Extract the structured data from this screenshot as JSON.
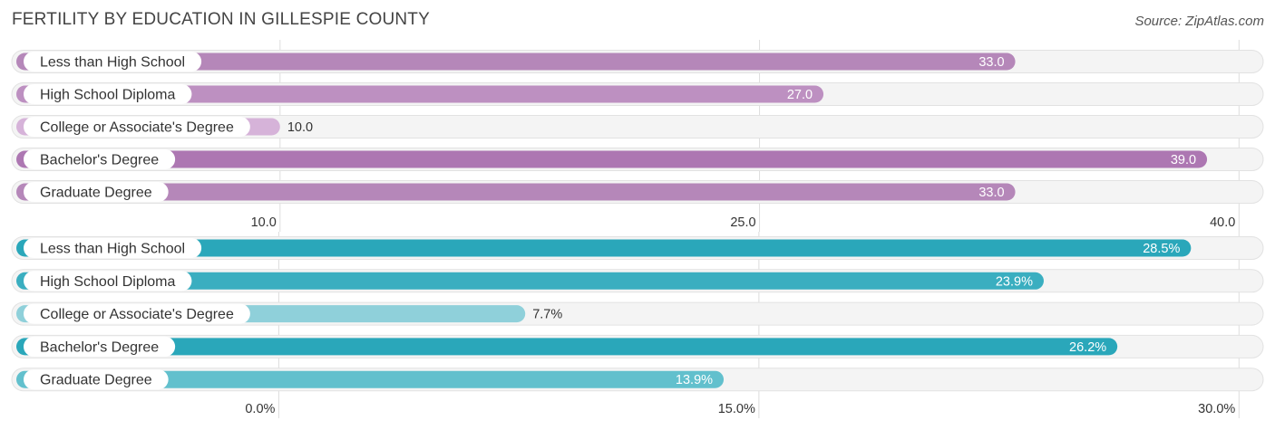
{
  "title": "FERTILITY BY EDUCATION IN GILLESPIE COUNTY",
  "source": "Source: ZipAtlas.com",
  "chart_data": [
    {
      "type": "bar",
      "orientation": "horizontal",
      "categories": [
        "Less than High School",
        "High School Diploma",
        "College or Associate's Degree",
        "Bachelor's Degree",
        "Graduate Degree"
      ],
      "values": [
        33.0,
        27.0,
        10.0,
        39.0,
        33.0
      ],
      "value_labels": [
        "33.0",
        "27.0",
        "10.0",
        "39.0",
        "33.0"
      ],
      "ticks": [
        10.0,
        25.0,
        40.0
      ],
      "tick_labels": [
        "10.0",
        "25.0",
        "40.0"
      ],
      "xlim": [
        1.75,
        40.7
      ],
      "colors": {
        "dark": "#b07ab5",
        "mid": "#bf8fc3",
        "light": "#d6b3d9"
      },
      "bar_colors": [
        "#b587b9",
        "#bd90c1",
        "#d6b3d9",
        "#ad77b2",
        "#b587b9"
      ]
    },
    {
      "type": "bar",
      "orientation": "horizontal",
      "categories": [
        "Less than High School",
        "High School Diploma",
        "College or Associate's Degree",
        "Bachelor's Degree",
        "Graduate Degree"
      ],
      "values": [
        28.5,
        23.9,
        7.7,
        26.2,
        13.9
      ],
      "value_labels": [
        "28.5%",
        "23.9%",
        "7.7%",
        "26.2%",
        "13.9%"
      ],
      "ticks": [
        0.0,
        15.0,
        30.0
      ],
      "tick_labels": [
        "0.0%",
        "15.0%",
        "30.0%"
      ],
      "xlim": [
        -8.2,
        30.7
      ],
      "colors": {
        "dark": "#2aa7ba",
        "mid": "#45b4c5",
        "light": "#8fd0da"
      },
      "bar_colors": [
        "#2aa7ba",
        "#3aaec0",
        "#8fd0da",
        "#2aa7ba",
        "#62c0cd"
      ]
    }
  ]
}
